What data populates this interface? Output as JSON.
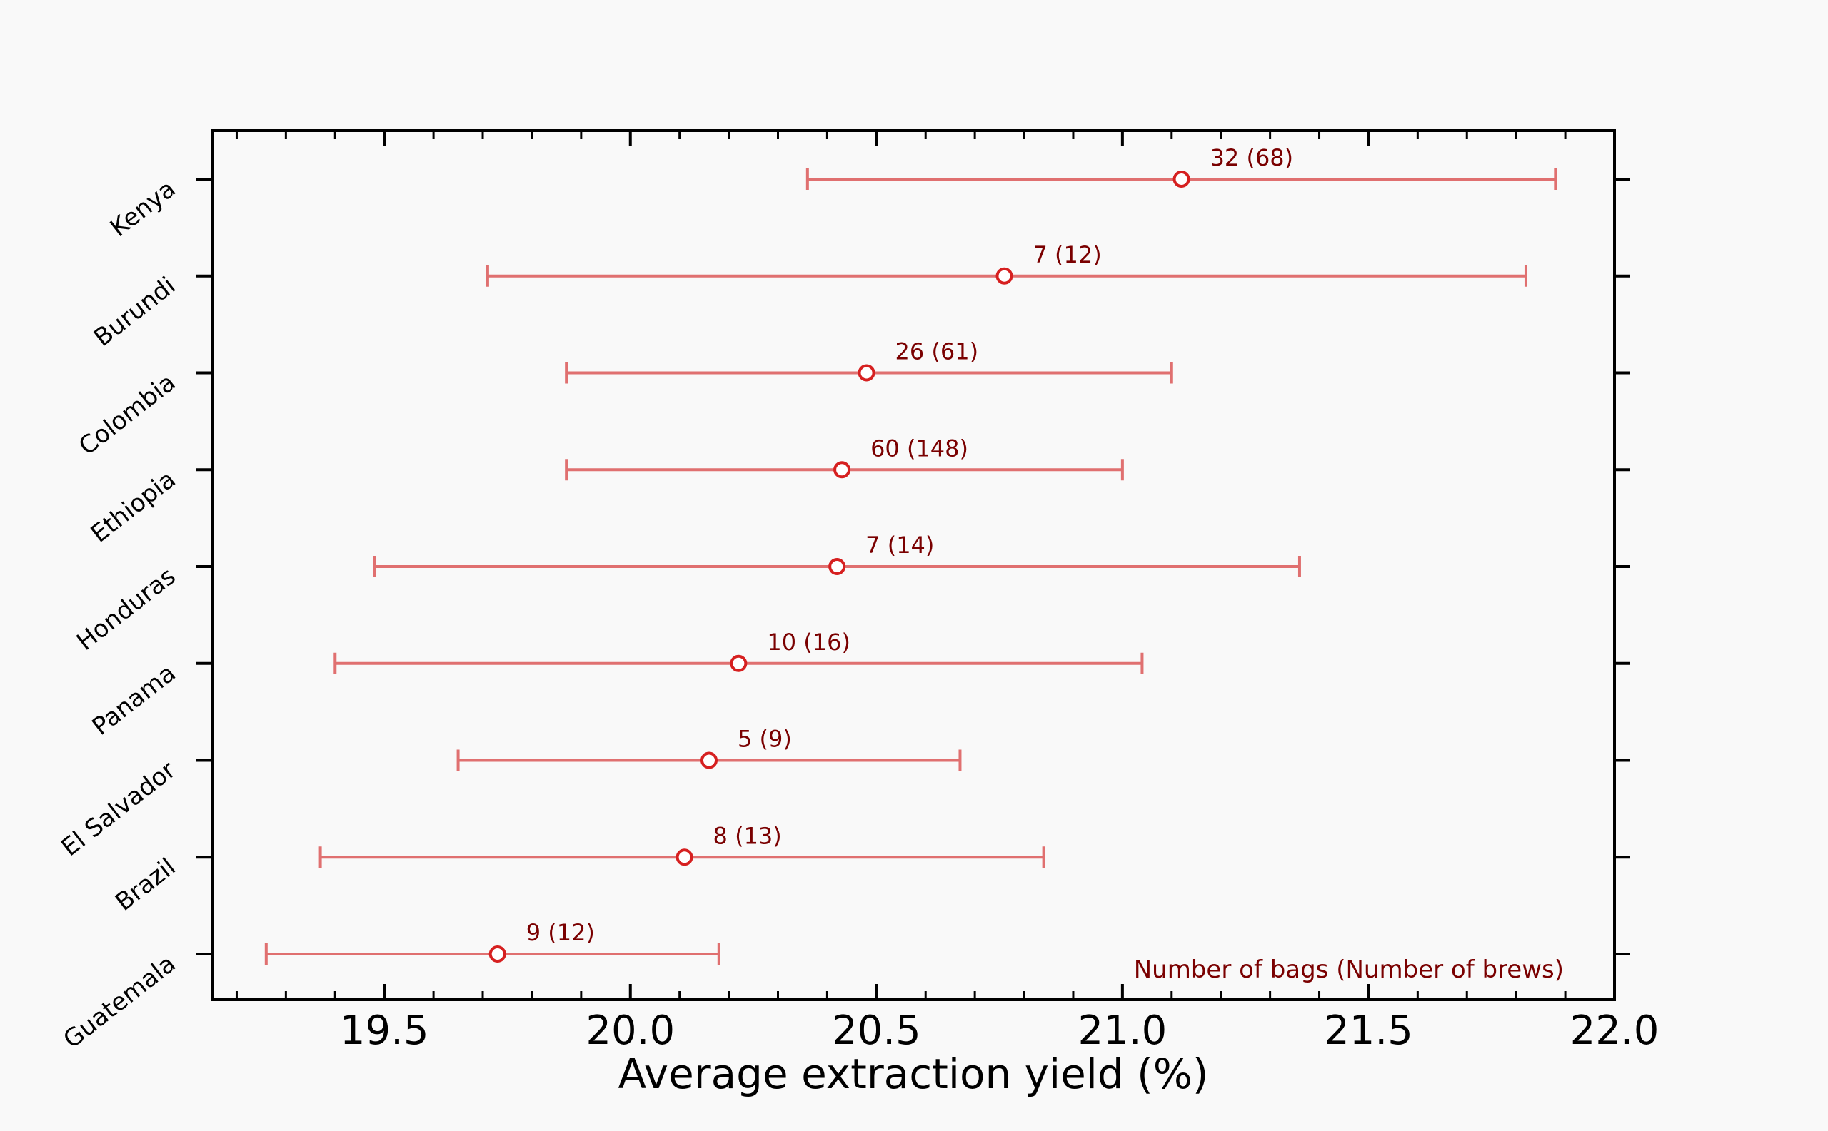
{
  "chart_data": {
    "type": "errorbar",
    "title": "",
    "xlabel": "Average extraction yield (%)",
    "ylabel": "",
    "xlim": [
      19.15,
      22.0
    ],
    "xticks": [
      19.5,
      20.0,
      20.5,
      21.0,
      21.5,
      22.0
    ],
    "xtick_labels": [
      "19.5",
      "20.0",
      "20.5",
      "21.0",
      "21.5",
      "22.0"
    ],
    "x_minor_tick_step": 0.1,
    "grid": false,
    "categories": [
      "Kenya",
      "Burundi",
      "Colombia",
      "Ethiopia",
      "Honduras",
      "Panama",
      "El Salvador",
      "Brazil",
      "Guatemala"
    ],
    "series": [
      {
        "points": [
          {
            "category": "Kenya",
            "value": 21.12,
            "low": 20.36,
            "high": 21.88,
            "label": "32 (68)"
          },
          {
            "category": "Burundi",
            "value": 20.76,
            "low": 19.71,
            "high": 21.82,
            "label": "7 (12)"
          },
          {
            "category": "Colombia",
            "value": 20.48,
            "low": 19.87,
            "high": 21.1,
            "label": "26 (61)"
          },
          {
            "category": "Ethiopia",
            "value": 20.43,
            "low": 19.87,
            "high": 21.0,
            "label": "60 (148)"
          },
          {
            "category": "Honduras",
            "value": 20.42,
            "low": 19.48,
            "high": 21.36,
            "label": "7 (14)"
          },
          {
            "category": "Panama",
            "value": 20.22,
            "low": 19.4,
            "high": 21.04,
            "label": "10 (16)"
          },
          {
            "category": "El Salvador",
            "value": 20.16,
            "low": 19.65,
            "high": 20.67,
            "label": "5 (9)"
          },
          {
            "category": "Brazil",
            "value": 20.11,
            "low": 19.37,
            "high": 20.84,
            "label": "8 (13)"
          },
          {
            "category": "Guatemala",
            "value": 19.73,
            "low": 19.26,
            "high": 20.18,
            "label": "9 (12)"
          }
        ]
      }
    ],
    "annotation": "Number of bags (Number of brews)",
    "annotation_position": "bottom-right",
    "colors": {
      "errorbar": "#e07070",
      "marker": "#d62020",
      "label_text": "#7a0000",
      "axis": "#000000",
      "background": "#f9f9f9"
    }
  }
}
